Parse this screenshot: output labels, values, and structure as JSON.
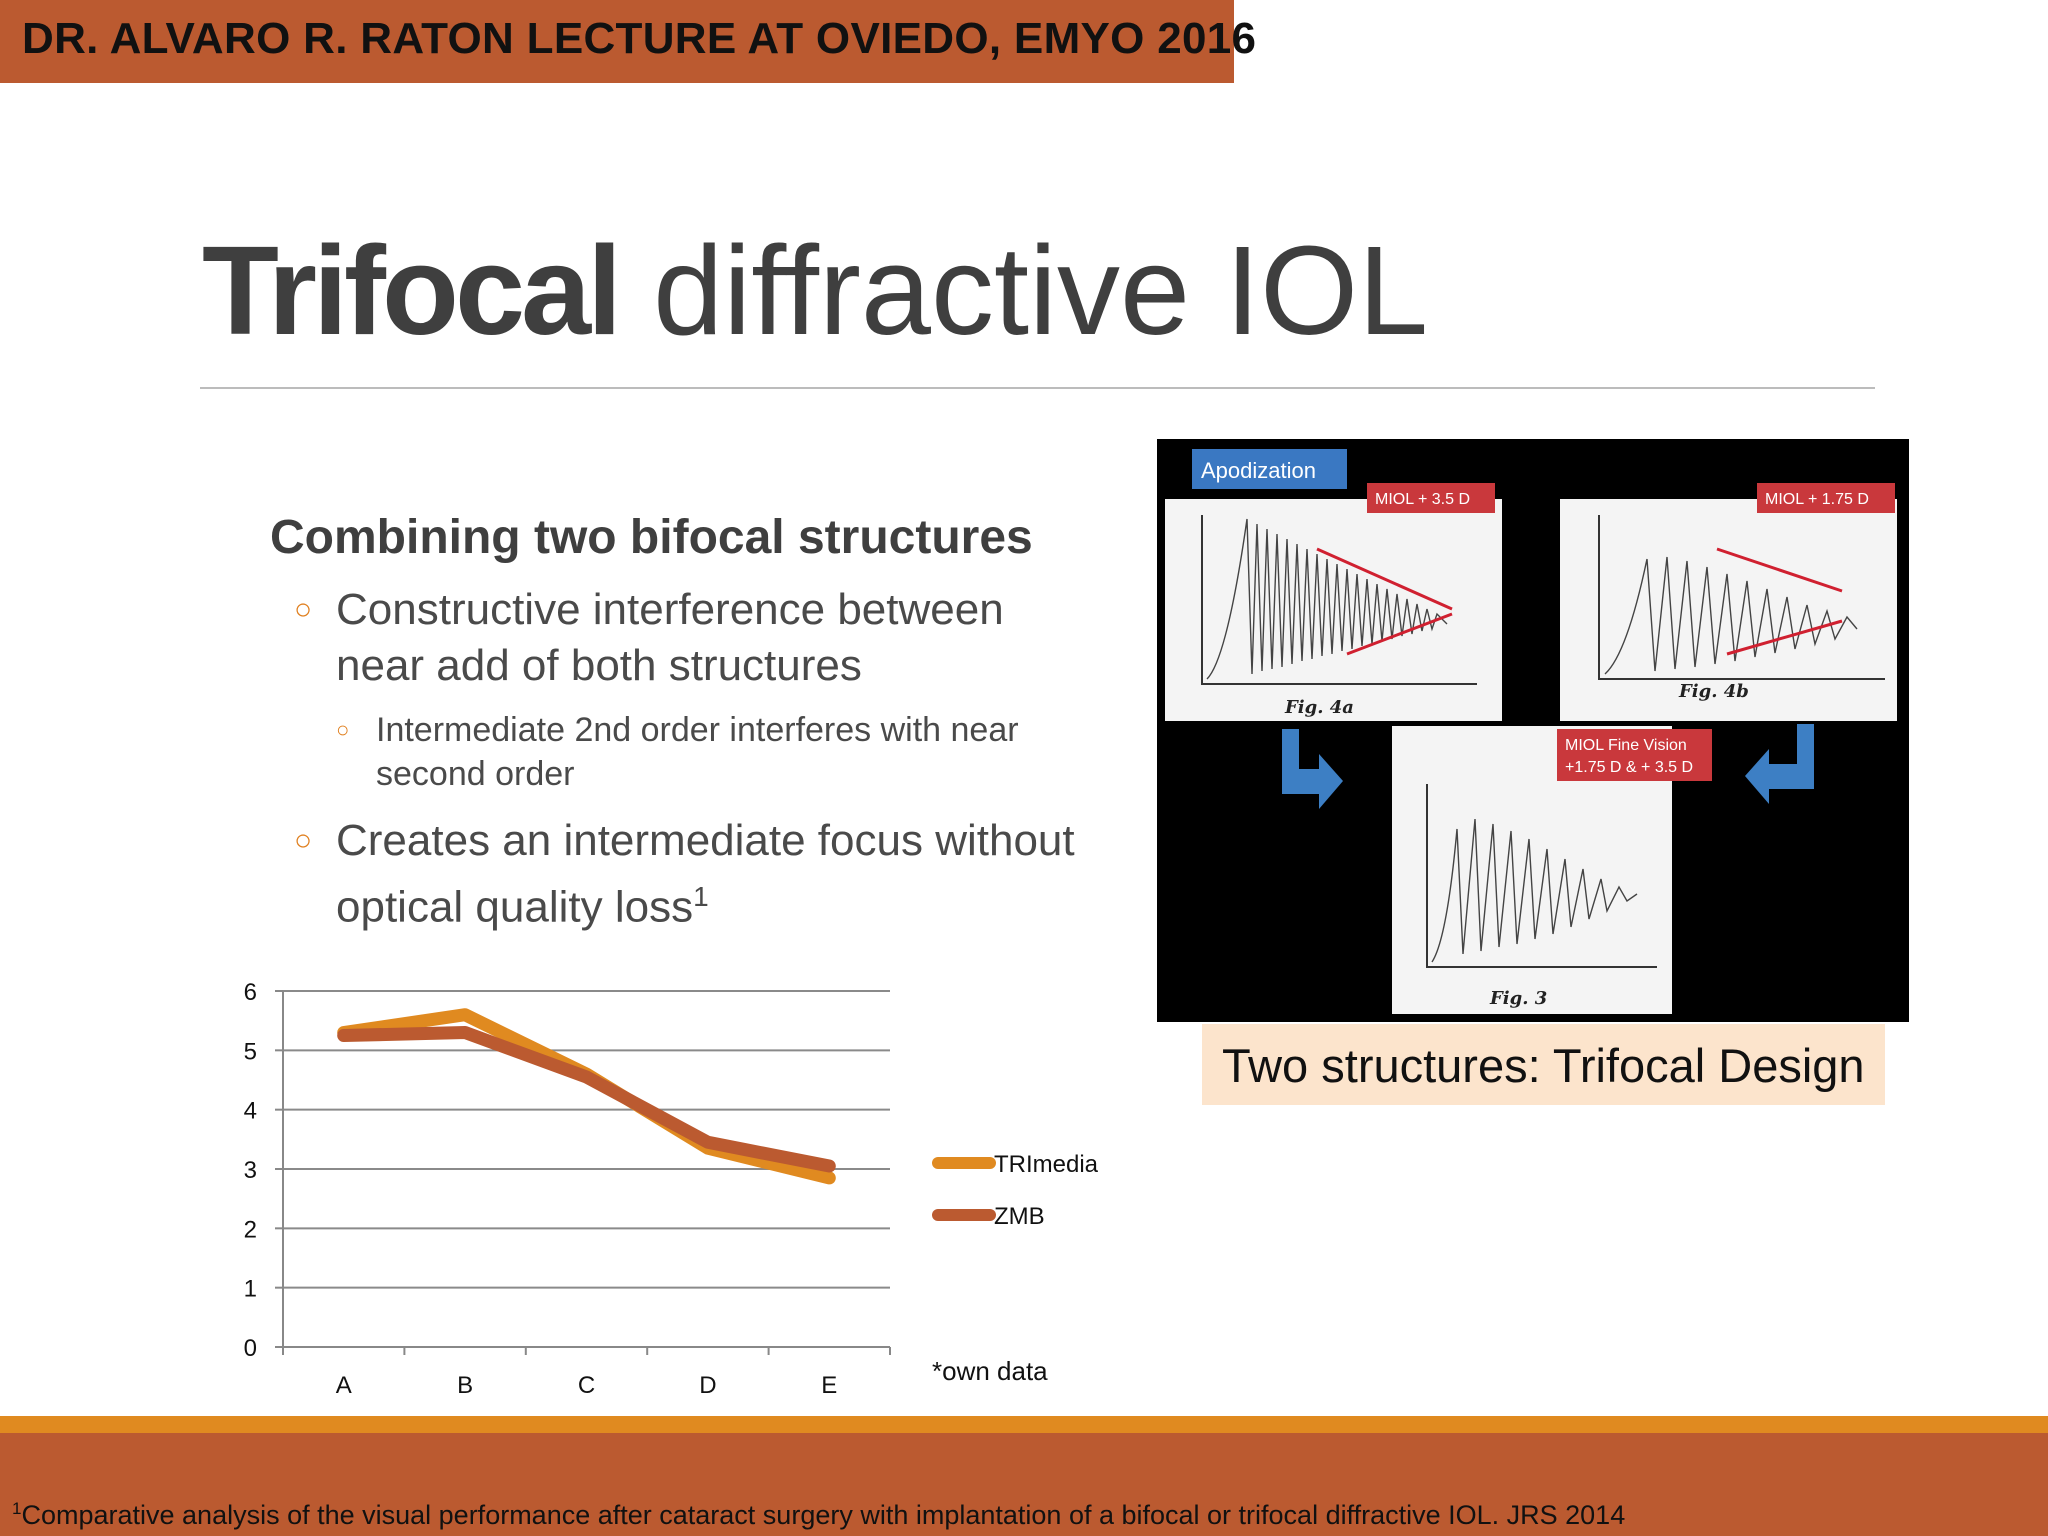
{
  "header": {
    "text": "DR. ALVARO R. RATON LECTURE AT OVIEDO, EMYO 2016"
  },
  "title": {
    "bold": "Trifocal",
    "rest": " diffractive IOL"
  },
  "content": {
    "heading": "Combining two bifocal structures",
    "bullet1": "Constructive interference between near add of both structures",
    "sub1": "Intermediate 2nd order interferes with near second order",
    "bullet2": "Creates an intermediate focus without optical quality loss",
    "bullet2_sup": "1"
  },
  "figure": {
    "apodization_label": "Apodization",
    "fig4a_badge": "MIOL + 3.5 D",
    "fig4b_badge": "MIOL + 1.75 D",
    "fig3_badge_line1": "MIOL Fine Vision",
    "fig3_badge_line2": "+1.75 D & + 3.5 D",
    "fig4a_label": "Fig. 4a",
    "fig4b_label": "Fig. 4b",
    "fig3_label": "Fig. 3"
  },
  "caption": {
    "text": "Two structures: Trifocal Design"
  },
  "own_data_note": "*own data",
  "footnote": {
    "sup": "1",
    "text": "Comparative analysis of the visual performance after cataract surgery with implantation of a bifocal or trifocal diffractive IOL. JRS 2014"
  },
  "colors": {
    "accent": "#bb5a30",
    "orange": "#e08a20",
    "caption_bg": "#fce4cc"
  },
  "chart_data": {
    "type": "line",
    "categories": [
      "A",
      "B",
      "C",
      "D",
      "E"
    ],
    "ylim": [
      0,
      6
    ],
    "yticks": [
      0,
      1,
      2,
      3,
      4,
      5,
      6
    ],
    "grid": true,
    "legend": "right",
    "series": [
      {
        "name": "TRImedia",
        "values": [
          5.3,
          5.6,
          4.6,
          3.35,
          2.85
        ],
        "color": "#e08a20"
      },
      {
        "name": "ZMB",
        "values": [
          5.25,
          5.3,
          4.55,
          3.45,
          3.05
        ],
        "color": "#bb5a30"
      }
    ]
  }
}
